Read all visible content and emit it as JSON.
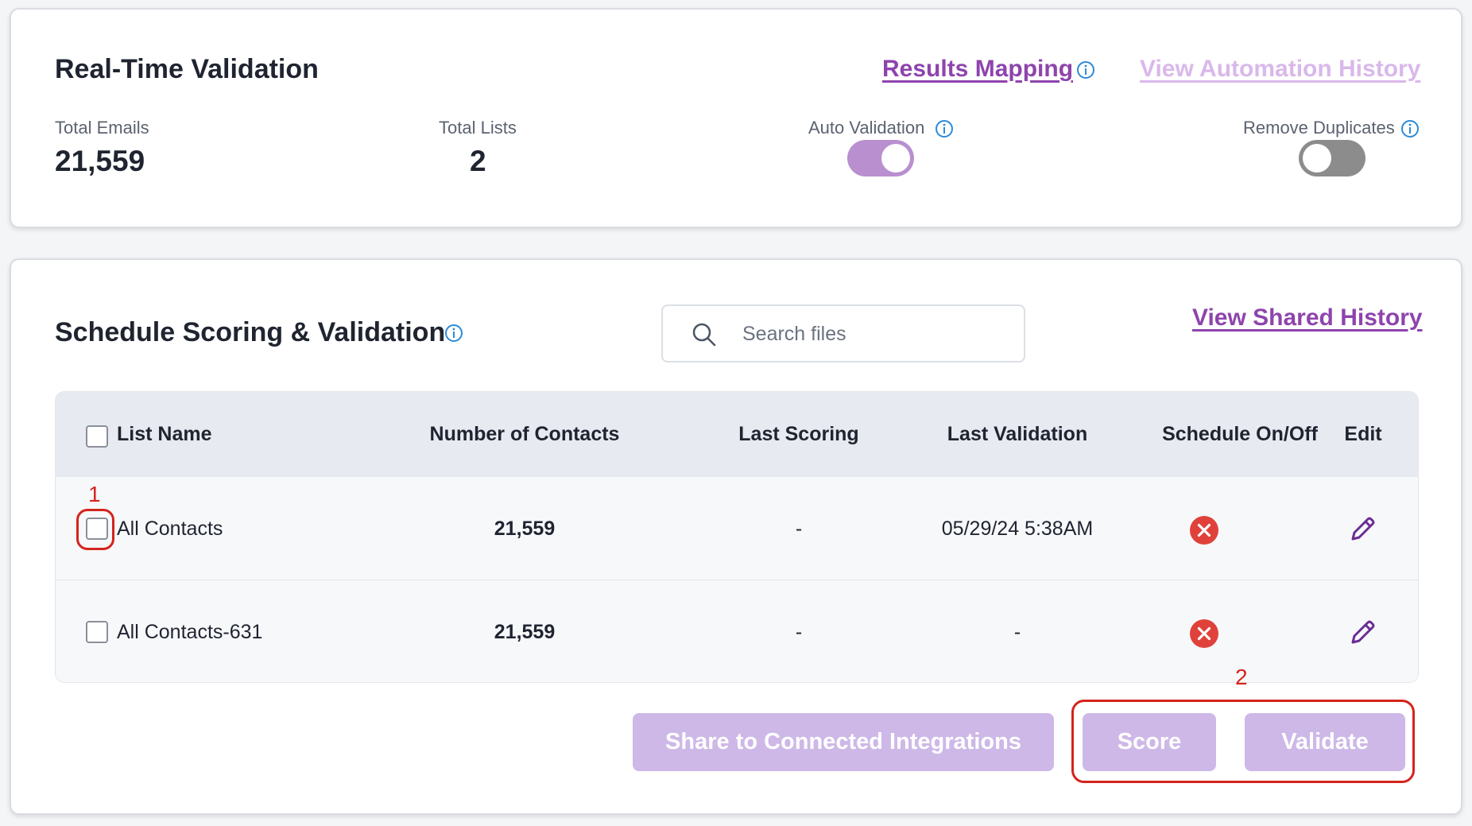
{
  "realtime": {
    "title": "Real-Time Validation",
    "results_mapping_link": "Results Mapping",
    "automation_history_link": "View Automation History",
    "stats": {
      "total_emails_label": "Total Emails",
      "total_emails_value": "21,559",
      "total_lists_label": "Total Lists",
      "total_lists_value": "2"
    },
    "toggles": {
      "auto_validation_label": "Auto Validation",
      "auto_validation_on": true,
      "remove_duplicates_label": "Remove Duplicates",
      "remove_duplicates_on": false
    }
  },
  "schedule": {
    "title": "Schedule Scoring & Validation",
    "search_placeholder": "Search files",
    "search_value": "",
    "shared_history_link": "View Shared History",
    "columns": [
      "List Name",
      "Number of Contacts",
      "Last Scoring",
      "Last Validation",
      "Schedule On/Off",
      "Edit"
    ],
    "rows": [
      {
        "name": "All Contacts",
        "contacts": "21,559",
        "last_scoring": "-",
        "last_validation": "05/29/24 5:38AM",
        "schedule_on": false
      },
      {
        "name": "All Contacts-631",
        "contacts": "21,559",
        "last_scoring": "-",
        "last_validation": "-",
        "schedule_on": false
      }
    ],
    "buttons": {
      "share": "Share to Connected Integrations",
      "score": "Score",
      "validate": "Validate"
    }
  },
  "annotations": {
    "one": "1",
    "two": "2"
  },
  "colors": {
    "accent_purple": "#8e44ad",
    "link_faded": "#d9b8ea",
    "button_disabled": "#cdb8e8",
    "info_blue": "#2c8ad8",
    "error_red": "#e0413a",
    "annotation_red": "#d4241c",
    "toggle_on": "#b98fd0",
    "toggle_off": "#8c8c8c"
  },
  "icons": {
    "info": "info-icon",
    "search": "search-icon",
    "schedule_off": "close-circle-icon",
    "edit": "pencil-icon"
  }
}
